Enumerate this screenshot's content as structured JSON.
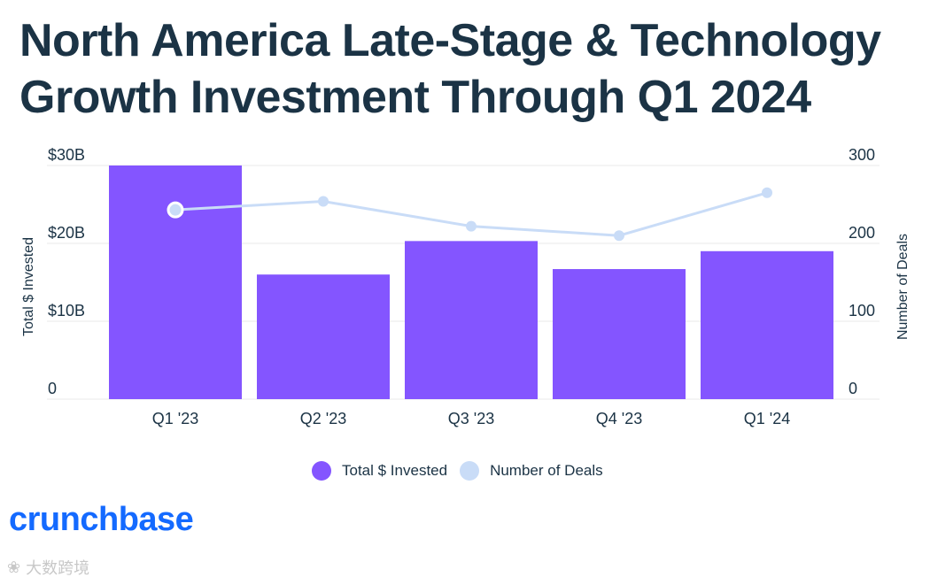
{
  "title": {
    "line1": "North America Late-Stage & Technology",
    "line2": "Growth Investment Through Q1 2024"
  },
  "colors": {
    "bar": "#8455ff",
    "line": "#c9dcf7",
    "text": "#1b3345",
    "grid": "#e8e8e8",
    "brand": "#146aff"
  },
  "chart_data": {
    "type": "bar",
    "categories": [
      "Q1 '23",
      "Q2 '23",
      "Q3 '23",
      "Q4 '23",
      "Q1 '24"
    ],
    "series": [
      {
        "name": "Total $ Invested",
        "type": "bar",
        "axis": "left",
        "values": [
          30,
          16,
          20.3,
          16.7,
          19
        ]
      },
      {
        "name": "Number of Deals",
        "type": "line",
        "axis": "right",
        "values": [
          243,
          254,
          222,
          210,
          265
        ]
      }
    ],
    "left_axis": {
      "label": "Total $ Invested",
      "ylim": [
        0,
        30
      ],
      "ticks": [
        0,
        10,
        20,
        30
      ],
      "tick_labels": [
        "0",
        "$10B",
        "$20B",
        "$30B"
      ]
    },
    "right_axis": {
      "label": "Number of Deals",
      "ylim": [
        0,
        300
      ],
      "ticks": [
        0,
        100,
        200,
        300
      ],
      "tick_labels": [
        "0",
        "100",
        "200",
        "300"
      ]
    },
    "grid": true,
    "legend_position": "bottom-center"
  },
  "legend": {
    "bar_label": "Total $ Invested",
    "line_label": "Number of Deals"
  },
  "brand": "crunchbase",
  "watermark": "大数跨境"
}
